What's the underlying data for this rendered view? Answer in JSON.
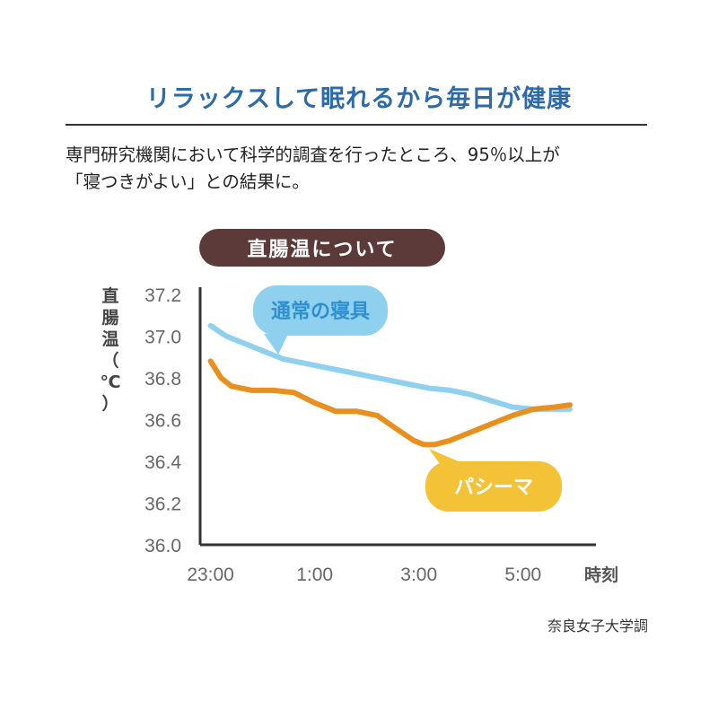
{
  "headline": "リラックスして眠れるから毎日が健康",
  "body_lines": [
    "専門研究機関において科学的調査を行ったところ、95％以上が",
    "「寝つきがよい」との結果に。"
  ],
  "badge": "直腸温について",
  "y_axis_title": [
    "直",
    "腸",
    "温",
    "（",
    "℃",
    "）"
  ],
  "credit": "奈良女子大学調",
  "colors": {
    "headline": "#2c6aa8",
    "badge_bg": "#5c3a3a",
    "series_normal": "#8ed0ee",
    "series_pasima": "#e8901e",
    "bubble_normal": "#8ed0ee",
    "bubble_pasima": "#f4c236",
    "bubble_normal_text": "#2e8fcf",
    "bubble_pasima_text": "#ffffff"
  },
  "chart_data": {
    "type": "line",
    "xlabel": "時刻",
    "x_tick_labels": [
      "23:00",
      "1:00",
      "3:00",
      "5:00"
    ],
    "x_tick_values": [
      23,
      25,
      27,
      29
    ],
    "xlim": [
      22.8,
      30.4
    ],
    "ylim": [
      36.0,
      37.2
    ],
    "y_ticks": [
      "36.0",
      "36.2",
      "36.4",
      "36.6",
      "36.8",
      "37.0",
      "37.2"
    ],
    "grid": false,
    "series": [
      {
        "name": "通常の寝具",
        "x": [
          23.0,
          23.3,
          23.6,
          24.0,
          24.4,
          24.8,
          25.2,
          25.6,
          26.0,
          26.4,
          26.8,
          27.0,
          27.2,
          27.6,
          28.0,
          28.4,
          28.8,
          29.2,
          29.6,
          29.9
        ],
        "values": [
          37.05,
          37.0,
          36.97,
          36.93,
          36.89,
          36.87,
          36.85,
          36.83,
          36.81,
          36.79,
          36.77,
          36.76,
          36.75,
          36.74,
          36.72,
          36.69,
          36.66,
          36.65,
          36.65,
          36.65
        ]
      },
      {
        "name": "パシーマ",
        "x": [
          23.0,
          23.2,
          23.4,
          23.8,
          24.2,
          24.6,
          25.0,
          25.4,
          25.8,
          26.2,
          26.6,
          26.9,
          27.1,
          27.3,
          27.6,
          28.0,
          28.4,
          28.8,
          29.2,
          29.6,
          29.9
        ],
        "values": [
          36.88,
          36.8,
          36.76,
          36.74,
          36.74,
          36.73,
          36.68,
          36.64,
          36.64,
          36.62,
          36.55,
          36.5,
          36.48,
          36.48,
          36.5,
          36.54,
          36.58,
          36.62,
          36.65,
          36.66,
          36.67
        ]
      }
    ]
  }
}
